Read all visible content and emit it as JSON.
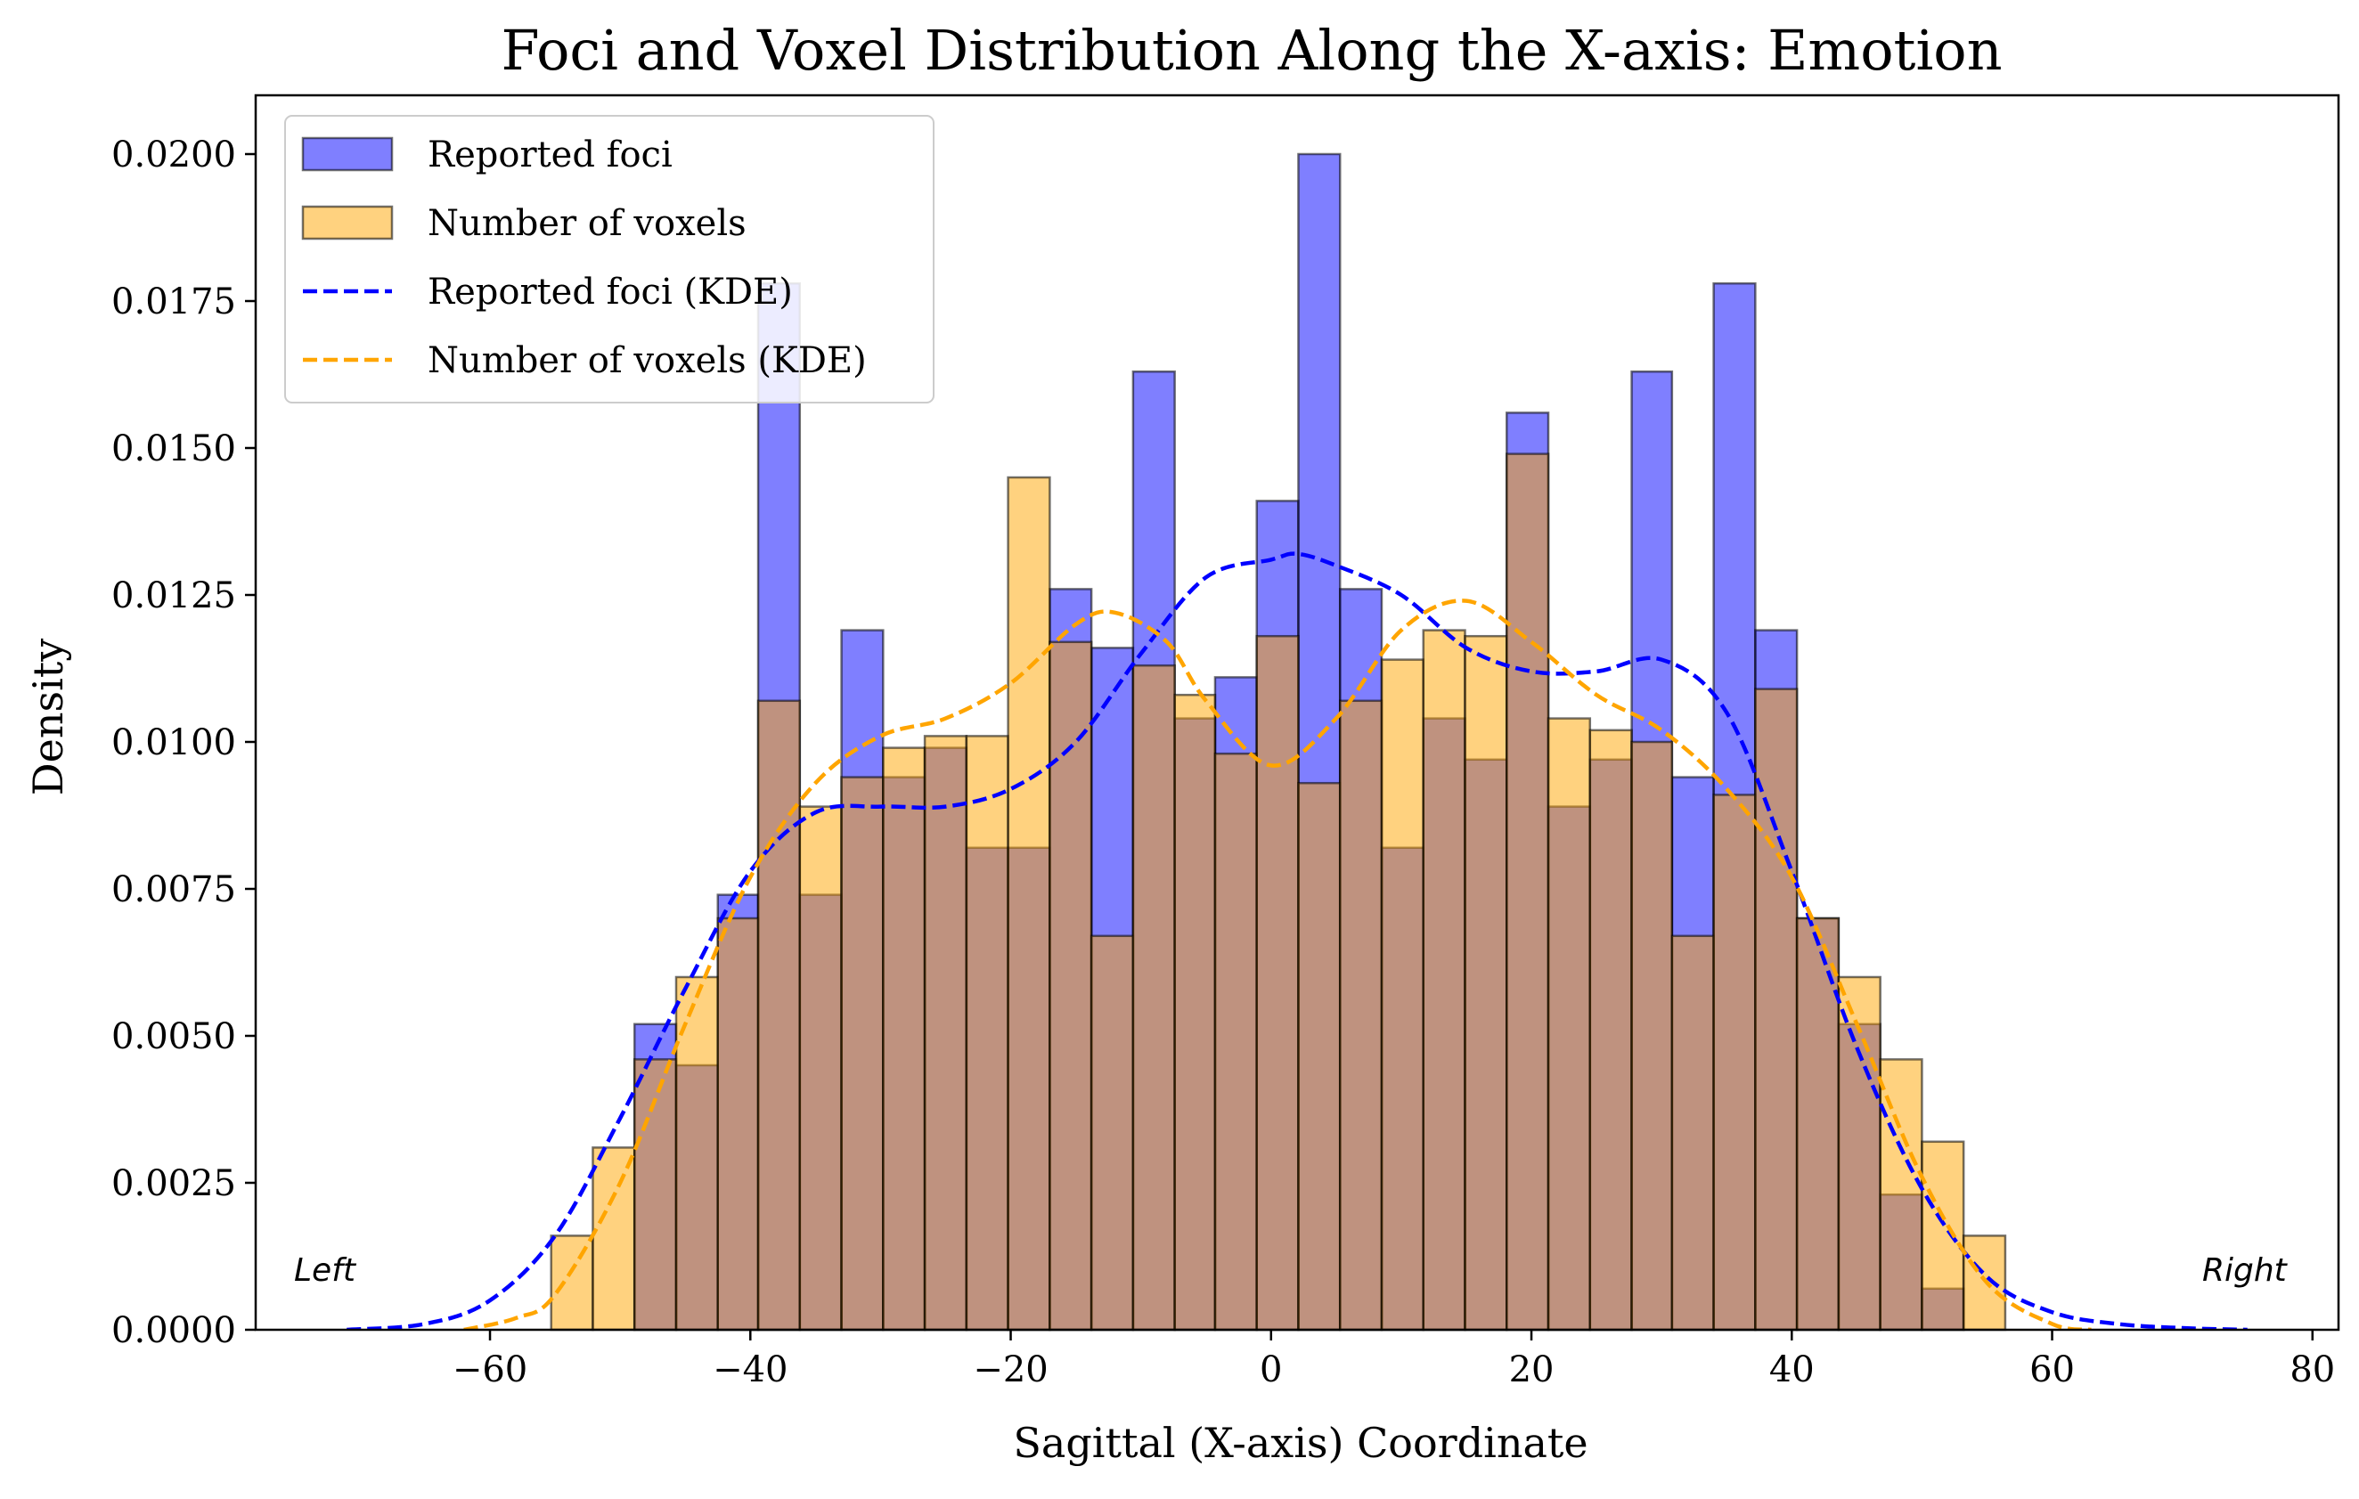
{
  "chart_data": {
    "type": "bar",
    "title": "Foci and Voxel Distribution Along the X-axis: Emotion",
    "xlabel": "Sagittal (X-axis) Coordinate",
    "ylabel": "Density",
    "xlim": [
      -78,
      82
    ],
    "ylim": [
      0,
      0.021
    ],
    "xticks": [
      -60,
      -40,
      -20,
      0,
      20,
      40,
      60,
      80
    ],
    "xtick_labels": [
      "−60",
      "−40",
      "−20",
      "0",
      "20",
      "40",
      "60",
      "80"
    ],
    "yticks": [
      0,
      0.0025,
      0.005,
      0.0075,
      0.01,
      0.0125,
      0.015,
      0.0175,
      0.02
    ],
    "ytick_labels": [
      "0.0000",
      "0.0025",
      "0.0050",
      "0.0075",
      "0.0100",
      "0.0125",
      "0.0150",
      "0.0175",
      "0.0200"
    ],
    "grid": false,
    "legend_position": "top-left",
    "bin_edges": [
      -55.3,
      -52.1,
      -48.9,
      -45.7,
      -42.5,
      -39.4,
      -36.2,
      -33.0,
      -29.8,
      -26.6,
      -23.4,
      -20.2,
      -17.0,
      -13.8,
      -10.6,
      -7.4,
      -4.3,
      -1.1,
      2.1,
      5.3,
      8.5,
      11.7,
      14.9,
      18.1,
      21.3,
      24.5,
      27.7,
      30.8,
      34.0,
      37.2,
      40.4,
      43.6,
      46.8,
      50.0,
      53.2,
      56.4
    ],
    "annotations": {
      "left": "Left",
      "right": "Right"
    },
    "colors": {
      "foci": "#0000ff",
      "voxels": "#ffa500",
      "edge": "#000000"
    },
    "series": [
      {
        "name": "Reported foci",
        "kind": "histogram",
        "color": "#0000ff",
        "alpha": 0.5,
        "values": [
          0,
          0,
          0.0052,
          0.0045,
          0.0074,
          0.0178,
          0.0074,
          0.0119,
          0.0094,
          0.0099,
          0.0082,
          0.0082,
          0.0126,
          0.0116,
          0.0163,
          0.0104,
          0.0111,
          0.0141,
          0.02,
          0.0126,
          0.0082,
          0.0104,
          0.0097,
          0.0156,
          0.0089,
          0.0097,
          0.0163,
          0.0094,
          0.0178,
          0.0119,
          0.007,
          0.0052,
          0.0023,
          0.0007,
          0
        ]
      },
      {
        "name": "Number of voxels",
        "kind": "histogram",
        "color": "#ffa500",
        "alpha": 0.5,
        "values": [
          0.0016,
          0.0031,
          0.0046,
          0.006,
          0.007,
          0.0107,
          0.0089,
          0.0094,
          0.0099,
          0.0101,
          0.0101,
          0.0145,
          0.0117,
          0.0067,
          0.0113,
          0.0108,
          0.0098,
          0.0118,
          0.0093,
          0.0107,
          0.0114,
          0.0119,
          0.0118,
          0.0149,
          0.0104,
          0.0102,
          0.01,
          0.0067,
          0.0091,
          0.0109,
          0.007,
          0.006,
          0.0046,
          0.0032,
          0.0016
        ]
      },
      {
        "name": "Reported foci (KDE)",
        "kind": "line",
        "style": "dashed",
        "color": "#0000ff",
        "x": [
          -71,
          -65,
          -60,
          -55,
          -50,
          -45,
          -40,
          -35,
          -30,
          -25,
          -20,
          -15,
          -10,
          -5,
          0,
          2,
          5,
          10,
          15,
          20,
          25,
          30,
          35,
          40,
          45,
          50,
          55,
          60,
          65,
          70,
          75
        ],
        "y": [
          0,
          0.0001,
          0.0005,
          0.0016,
          0.0036,
          0.0058,
          0.0078,
          0.0088,
          0.0089,
          0.0089,
          0.0092,
          0.01,
          0.0115,
          0.0128,
          0.0131,
          0.0132,
          0.013,
          0.0125,
          0.0116,
          0.0112,
          0.0112,
          0.0114,
          0.0105,
          0.0078,
          0.0048,
          0.0024,
          0.0009,
          0.0003,
          0.0001,
          3e-05,
          0
        ]
      },
      {
        "name": "Number of voxels (KDE)",
        "kind": "line",
        "style": "dashed",
        "color": "#ffa500",
        "x": [
          -62,
          -58,
          -55,
          -50,
          -45,
          -40,
          -35,
          -30,
          -25,
          -20,
          -15,
          -12,
          -8,
          -5,
          0,
          5,
          10,
          15,
          20,
          25,
          30,
          35,
          40,
          45,
          50,
          55,
          60,
          63
        ],
        "y": [
          0,
          0.0002,
          0.0006,
          0.0025,
          0.0052,
          0.0077,
          0.0093,
          0.0101,
          0.0104,
          0.011,
          0.012,
          0.0122,
          0.0117,
          0.0107,
          0.0096,
          0.0104,
          0.0119,
          0.0124,
          0.0117,
          0.0108,
          0.0102,
          0.0092,
          0.0077,
          0.0052,
          0.0026,
          0.0008,
          0.0001,
          0
        ]
      }
    ]
  }
}
